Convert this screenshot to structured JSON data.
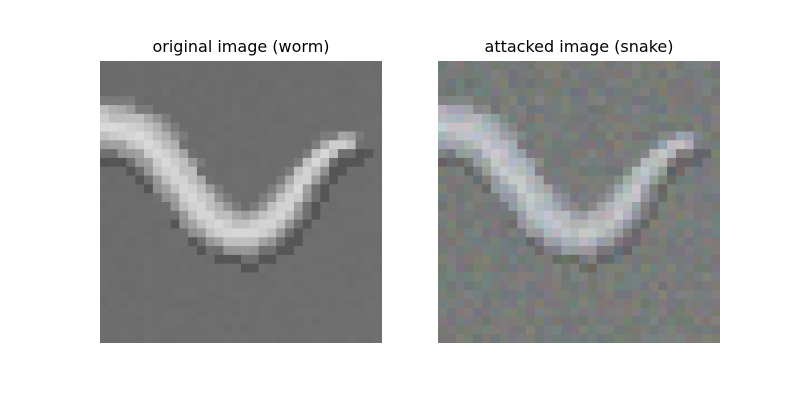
{
  "figure": {
    "panels": [
      {
        "title": "original image (worm)",
        "image_desc": "grayscale pixelated worm on gray background",
        "palette": {
          "background": "#6b6b6b",
          "shadow": "#4e4e4e",
          "body_dark": "#8f8f8f",
          "body_mid": "#b3b3b3",
          "body_light": "#d9d9d9"
        }
      },
      {
        "title": "attacked image (snake)",
        "image_desc": "same worm with colored adversarial noise",
        "palette": {
          "background": "#6f736f",
          "shadow": "#4f5050",
          "body_dark": "#9a9ea3",
          "body_mid": "#b6bbbf",
          "body_light": "#dde2e6",
          "noise_colors": [
            "#8a7f93",
            "#7f8c83",
            "#938a7c",
            "#7c8a94",
            "#8e8790"
          ]
        }
      }
    ]
  }
}
